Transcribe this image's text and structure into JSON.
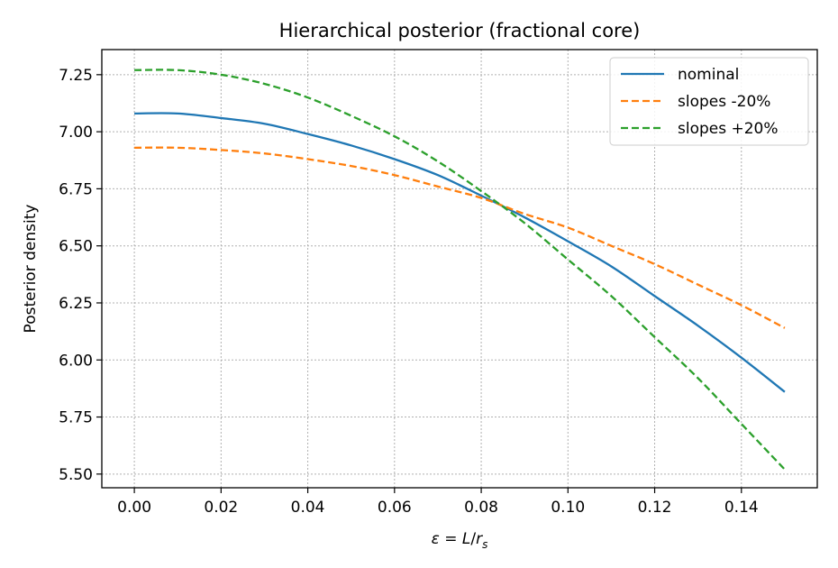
{
  "chart_data": {
    "type": "line",
    "title": "Hierarchical posterior (fractional core)",
    "xlabel_parts": {
      "eps": "ε",
      "eq": " = ",
      "L": "L",
      "slash": "/",
      "r": "r",
      "sub": "s"
    },
    "ylabel": "Posterior density",
    "xlim": [
      -0.0075,
      0.1575
    ],
    "ylim": [
      5.44,
      7.36
    ],
    "xticks": [
      0.0,
      0.02,
      0.04,
      0.06,
      0.08,
      0.1,
      0.12,
      0.14
    ],
    "xtick_labels": [
      "0.00",
      "0.02",
      "0.04",
      "0.06",
      "0.08",
      "0.10",
      "0.12",
      "0.14"
    ],
    "yticks": [
      5.5,
      5.75,
      6.0,
      6.25,
      6.5,
      6.75,
      7.0,
      7.25
    ],
    "ytick_labels": [
      "5.50",
      "5.75",
      "6.00",
      "6.25",
      "6.50",
      "6.75",
      "7.00",
      "7.25"
    ],
    "grid": true,
    "legend_position": "top-right",
    "x": [
      0.0,
      0.01,
      0.02,
      0.03,
      0.04,
      0.05,
      0.06,
      0.07,
      0.08,
      0.09,
      0.1,
      0.11,
      0.12,
      0.13,
      0.14,
      0.15
    ],
    "series": [
      {
        "name": "nominal",
        "color": "#1f77b4",
        "dash": "solid",
        "values": [
          7.08,
          7.08,
          7.06,
          7.035,
          6.99,
          6.94,
          6.88,
          6.81,
          6.72,
          6.625,
          6.52,
          6.41,
          6.28,
          6.15,
          6.01,
          5.86
        ]
      },
      {
        "name": "slopes -20%",
        "color": "#ff7f0e",
        "dash": "dashed",
        "values": [
          6.93,
          6.93,
          6.92,
          6.905,
          6.88,
          6.85,
          6.81,
          6.76,
          6.71,
          6.64,
          6.58,
          6.5,
          6.42,
          6.33,
          6.24,
          6.14
        ]
      },
      {
        "name": "slopes +20%",
        "color": "#2ca02c",
        "dash": "dashed",
        "values": [
          7.27,
          7.27,
          7.25,
          7.21,
          7.15,
          7.07,
          6.98,
          6.87,
          6.74,
          6.6,
          6.44,
          6.28,
          6.1,
          5.92,
          5.72,
          5.52
        ]
      }
    ]
  }
}
